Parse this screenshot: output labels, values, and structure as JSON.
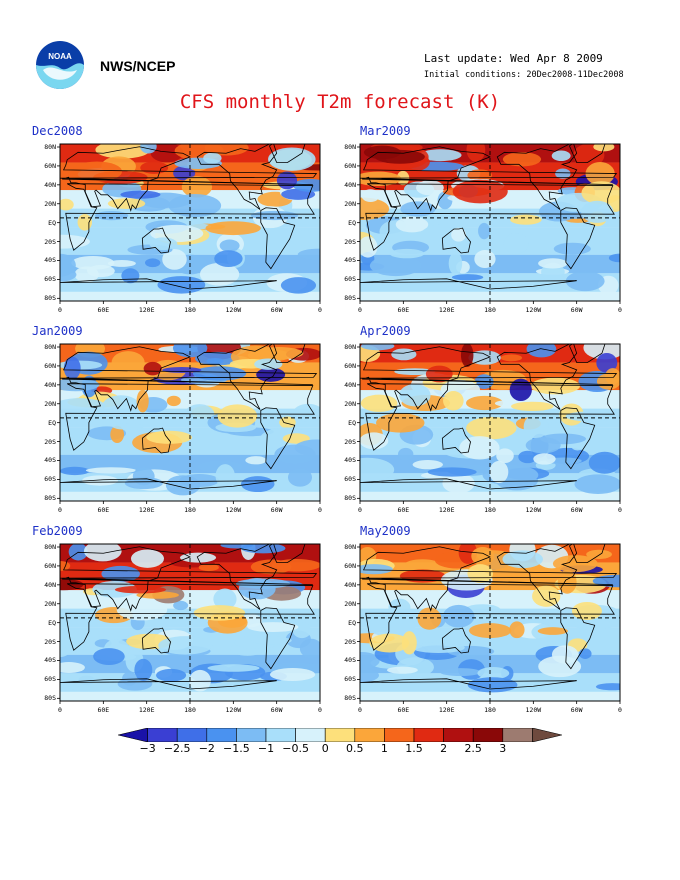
{
  "header": {
    "org": "NWS/NCEP",
    "last_update": "Last update: Wed Apr 8 2009",
    "initial_conditions": "Initial conditions: 20Dec2008-11Dec2008",
    "title": "CFS monthly T2m forecast (K)"
  },
  "panels": [
    {
      "label": "Dec2008"
    },
    {
      "label": "Mar2009"
    },
    {
      "label": "Jan2009"
    },
    {
      "label": "Apr2009"
    },
    {
      "label": "Feb2009"
    },
    {
      "label": "May2009"
    }
  ],
  "axes": {
    "lat_labels": [
      "80N",
      "60N",
      "40N",
      "20N",
      "EQ",
      "20S",
      "40S",
      "60S",
      "80S"
    ],
    "lon_labels": [
      "0",
      "60E",
      "120E",
      "180",
      "120W",
      "60W",
      "0"
    ]
  },
  "colorbar": {
    "labels": [
      "-3",
      "-2.5",
      "-2",
      "-1.5",
      "-1",
      "-0.5",
      "0",
      "0.5",
      "1",
      "1.5",
      "2",
      "2.5",
      "3"
    ],
    "colors": [
      "#1a12a8",
      "#3a3fd3",
      "#3f6fe8",
      "#4a92f0",
      "#7cbcf4",
      "#a9dffa",
      "#d7f2fb",
      "#fde07b",
      "#fba63a",
      "#f5661b",
      "#e02a12",
      "#b01010",
      "#8a0808",
      "#9d7b70",
      "#6e4a3e"
    ]
  }
}
